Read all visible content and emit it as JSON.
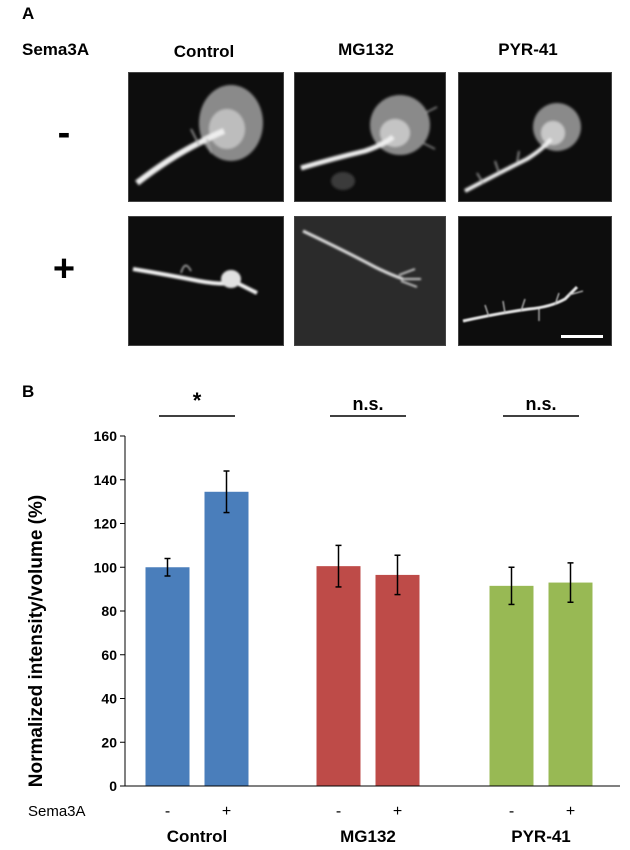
{
  "panel_a": {
    "letter": "A",
    "row_factor_label": "Sema3A",
    "columns": [
      "Control",
      "MG132",
      "PYR-41"
    ],
    "rows": [
      "-",
      "+"
    ]
  },
  "panel_b": {
    "letter": "B"
  },
  "colors": {
    "Control": "#4a7ebb",
    "MG132": "#be4b48",
    "PYR-41": "#98b954"
  },
  "chart_data": {
    "type": "bar",
    "ylabel": "Normalized intensity/volume (%)",
    "ylim": [
      0,
      160
    ],
    "yticks": [
      0,
      20,
      40,
      60,
      80,
      100,
      120,
      140,
      160
    ],
    "grid": false,
    "x_factor_label": "Sema3A",
    "groups": [
      {
        "name": "Control",
        "significance": "*",
        "bars": [
          {
            "sema3a": "-",
            "value": 100,
            "error": 4
          },
          {
            "sema3a": "+",
            "value": 134.5,
            "error": 9.5
          }
        ]
      },
      {
        "name": "MG132",
        "significance": "n.s.",
        "bars": [
          {
            "sema3a": "-",
            "value": 100.5,
            "error": 9.5
          },
          {
            "sema3a": "+",
            "value": 96.5,
            "error": 9
          }
        ]
      },
      {
        "name": "PYR-41",
        "significance": "n.s.",
        "bars": [
          {
            "sema3a": "-",
            "value": 91.5,
            "error": 8.5
          },
          {
            "sema3a": "+",
            "value": 93,
            "error": 9
          }
        ]
      }
    ]
  }
}
